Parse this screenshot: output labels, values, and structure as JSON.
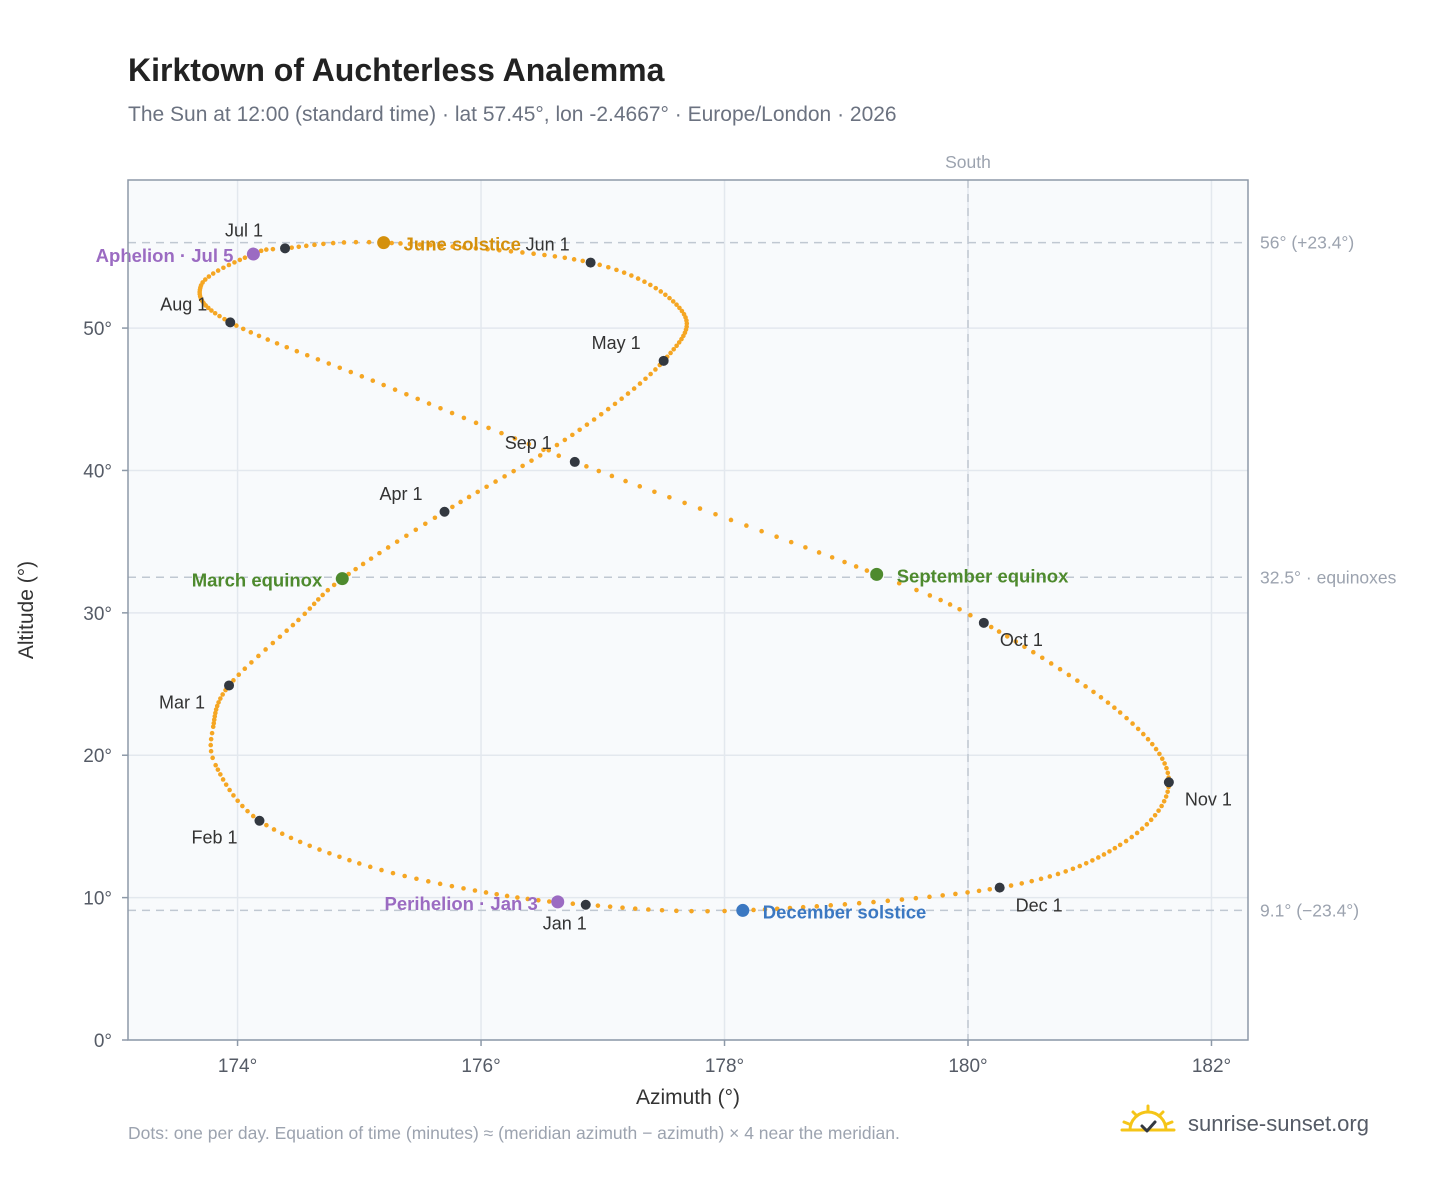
{
  "title": "Kirktown of Auchterless Analemma",
  "subtitle": "The Sun at 12:00 (standard time) · lat 57.45°, lon -2.4667° · Europe/London · 2026",
  "footnote": "Dots: one per day. Equation of time (minutes) ≈ (meridian azimuth − azimuth) × 4 near the meridian.",
  "brand": {
    "name": "sunrise-sunset.org",
    "icon": "sun-horizon-logo-icon",
    "color": "#f5c518"
  },
  "colors": {
    "curve": "#f5a623",
    "month_marker": "#333840",
    "solstice_june": "#d4900c",
    "solstice_december": "#3b78c2",
    "equinox": "#4e8a2e",
    "apsis": "#9b6bc2",
    "reference_line": "#c0c8d2",
    "plot_bg": "#f8fafc",
    "grid": "#e3e8ee",
    "frame": "#8d99a8"
  },
  "chart_data": {
    "type": "scatter",
    "xlabel": "Azimuth (°)",
    "ylabel": "Altitude (°)",
    "xlim": [
      173.1,
      182.3
    ],
    "ylim": [
      0,
      60.4
    ],
    "xticks": [
      174,
      176,
      178,
      180,
      182
    ],
    "yticks": [
      0,
      10,
      20,
      30,
      40,
      50
    ],
    "x_tick_labels": [
      "174°",
      "176°",
      "178°",
      "180°",
      "182°"
    ],
    "y_tick_labels": [
      "0°",
      "10°",
      "20°",
      "30°",
      "40°",
      "50°"
    ],
    "grid": true,
    "meridian": {
      "azimuth": 180,
      "label": "South"
    },
    "reference_lines": [
      {
        "altitude": 56.0,
        "label": "56° (+23.4°)"
      },
      {
        "altitude": 32.5,
        "label": "32.5° · equinoxes"
      },
      {
        "altitude": 9.1,
        "label": "9.1° (−23.4°)"
      }
    ],
    "month_markers": [
      {
        "label": "Jan 1",
        "az": 176.86,
        "alt": 9.5
      },
      {
        "label": "Feb 1",
        "az": 174.18,
        "alt": 15.4
      },
      {
        "label": "Mar 1",
        "az": 173.93,
        "alt": 24.9
      },
      {
        "label": "Apr 1",
        "az": 175.7,
        "alt": 37.1
      },
      {
        "label": "May 1",
        "az": 177.5,
        "alt": 47.7
      },
      {
        "label": "Jun 1",
        "az": 176.9,
        "alt": 54.6
      },
      {
        "label": "Jul 1",
        "az": 174.39,
        "alt": 55.6
      },
      {
        "label": "Aug 1",
        "az": 173.94,
        "alt": 50.4
      },
      {
        "label": "Sep 1",
        "az": 176.77,
        "alt": 40.6
      },
      {
        "label": "Oct 1",
        "az": 180.13,
        "alt": 29.3
      },
      {
        "label": "Nov 1",
        "az": 181.65,
        "alt": 18.1
      },
      {
        "label": "Dec 1",
        "az": 180.26,
        "alt": 10.7
      }
    ],
    "events": [
      {
        "label": "June solstice",
        "az": 175.2,
        "alt": 56.0,
        "kind": "solstice_june"
      },
      {
        "label": "December solstice",
        "az": 178.15,
        "alt": 9.1,
        "kind": "solstice_december"
      },
      {
        "label": "March equinox",
        "az": 174.86,
        "alt": 32.4,
        "kind": "equinox"
      },
      {
        "label": "September equinox",
        "az": 179.25,
        "alt": 32.7,
        "kind": "equinox"
      },
      {
        "label": "Aphelion · Jul 5",
        "az": 174.13,
        "alt": 55.2,
        "kind": "apsis"
      },
      {
        "label": "Perihelion · Jan 3",
        "az": 176.63,
        "alt": 9.7,
        "kind": "apsis"
      }
    ],
    "analemma_anchors": [
      {
        "day": 0,
        "az": 176.86,
        "alt": 9.5
      },
      {
        "day": 10,
        "az": 175.95,
        "alt": 10.5
      },
      {
        "day": 20,
        "az": 175.0,
        "alt": 12.4
      },
      {
        "day": 31,
        "az": 174.18,
        "alt": 15.4
      },
      {
        "day": 42,
        "az": 173.82,
        "alt": 19.3
      },
      {
        "day": 48,
        "az": 173.8,
        "alt": 22.0
      },
      {
        "day": 59,
        "az": 173.93,
        "alt": 24.9
      },
      {
        "day": 70,
        "az": 174.5,
        "alt": 29.5
      },
      {
        "day": 78,
        "az": 174.86,
        "alt": 32.4
      },
      {
        "day": 90,
        "az": 175.7,
        "alt": 37.1
      },
      {
        "day": 105,
        "az": 176.75,
        "alt": 42.5
      },
      {
        "day": 120,
        "az": 177.5,
        "alt": 47.7
      },
      {
        "day": 135,
        "az": 177.65,
        "alt": 51.2
      },
      {
        "day": 151,
        "az": 176.9,
        "alt": 54.6
      },
      {
        "day": 171,
        "az": 175.2,
        "alt": 56.0
      },
      {
        "day": 181,
        "az": 174.39,
        "alt": 55.6
      },
      {
        "day": 185,
        "az": 174.13,
        "alt": 55.2
      },
      {
        "day": 197,
        "az": 173.7,
        "alt": 53.0
      },
      {
        "day": 212,
        "az": 173.94,
        "alt": 50.4
      },
      {
        "day": 228,
        "az": 175.2,
        "alt": 46.0
      },
      {
        "day": 243,
        "az": 176.77,
        "alt": 40.6
      },
      {
        "day": 265,
        "az": 179.25,
        "alt": 32.7
      },
      {
        "day": 273,
        "az": 180.13,
        "alt": 29.3
      },
      {
        "day": 290,
        "az": 181.25,
        "alt": 23.0
      },
      {
        "day": 304,
        "az": 181.65,
        "alt": 18.1
      },
      {
        "day": 318,
        "az": 181.25,
        "alt": 13.7
      },
      {
        "day": 334,
        "az": 180.26,
        "alt": 10.7
      },
      {
        "day": 354,
        "az": 178.15,
        "alt": 9.1
      },
      {
        "day": 365,
        "az": 176.86,
        "alt": 9.5
      }
    ]
  }
}
